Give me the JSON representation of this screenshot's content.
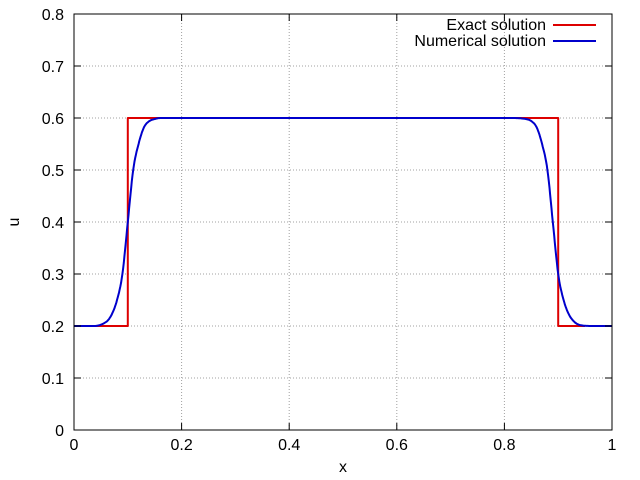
{
  "chart_data": {
    "type": "line",
    "title": "",
    "xlabel": "x",
    "ylabel": "u",
    "xlim": [
      0,
      1
    ],
    "ylim": [
      0,
      0.8
    ],
    "xticks": [
      0,
      0.2,
      0.4,
      0.6,
      0.8,
      1
    ],
    "xtick_labels": [
      "0",
      "0.2",
      "0.4",
      "0.6",
      "0.8",
      "1"
    ],
    "yticks": [
      0,
      0.1,
      0.2,
      0.3,
      0.4,
      0.5,
      0.6,
      0.7,
      0.8
    ],
    "ytick_labels": [
      "0",
      "0.1",
      "0.2",
      "0.3",
      "0.4",
      "0.5",
      "0.6",
      "0.7",
      "0.8"
    ],
    "grid": true,
    "legend_position": "top-right",
    "series": [
      {
        "name": "Exact solution",
        "color": "#dd0000",
        "x": [
          0,
          0.1,
          0.1,
          0.9,
          0.9,
          0.95
        ],
        "y": [
          0.2,
          0.2,
          0.6,
          0.6,
          0.2,
          0.2
        ]
      },
      {
        "name": "Numerical solution",
        "color": "#0000cc",
        "x": [
          0,
          0.04,
          0.06,
          0.07,
          0.08,
          0.09,
          0.1,
          0.11,
          0.12,
          0.13,
          0.14,
          0.15,
          0.16,
          0.18,
          0.2,
          0.5,
          0.8,
          0.82,
          0.84,
          0.85,
          0.86,
          0.87,
          0.88,
          0.89,
          0.9,
          0.91,
          0.92,
          0.93,
          0.94,
          0.96,
          1
        ],
        "y": [
          0.2,
          0.2,
          0.208,
          0.222,
          0.25,
          0.3,
          0.4,
          0.5,
          0.55,
          0.582,
          0.594,
          0.598,
          0.6,
          0.6,
          0.6,
          0.6,
          0.6,
          0.6,
          0.598,
          0.594,
          0.582,
          0.55,
          0.5,
          0.4,
          0.3,
          0.25,
          0.222,
          0.208,
          0.202,
          0.2,
          0.2
        ]
      }
    ]
  }
}
